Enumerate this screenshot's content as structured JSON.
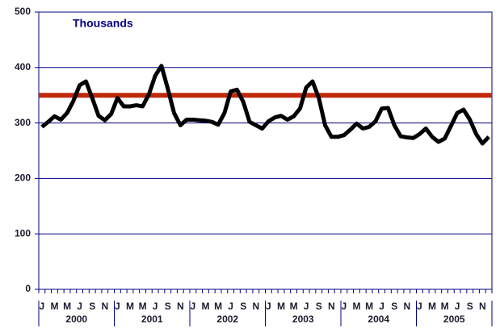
{
  "chart_data": {
    "type": "line",
    "title": "Thousands",
    "categories": [
      "J",
      null,
      "M",
      null,
      "M",
      null,
      "J",
      null,
      "S",
      null,
      "N",
      null,
      "J",
      null,
      "M",
      null,
      "M",
      null,
      "J",
      null,
      "S",
      null,
      "N",
      null,
      "J",
      null,
      "M",
      null,
      "M",
      null,
      "J",
      null,
      "S",
      null,
      "N",
      null,
      "J",
      null,
      "M",
      null,
      "M",
      null,
      "J",
      null,
      "S",
      null,
      "N",
      null,
      "J",
      null,
      "M",
      null,
      "M",
      null,
      "J",
      null,
      "S",
      null,
      "N",
      null,
      "J",
      null,
      "M",
      null,
      "M",
      null,
      "J",
      null,
      "S",
      null,
      "N",
      null
    ],
    "x_groups": [
      "2000",
      "2001",
      "2002",
      "2003",
      "2004",
      "2005"
    ],
    "series": [
      {
        "color": "#000000",
        "values": [
          293,
          302,
          312,
          306,
          318,
          340,
          368,
          375,
          345,
          313,
          305,
          316,
          345,
          330,
          330,
          332,
          330,
          352,
          385,
          403,
          362,
          318,
          296,
          306,
          306,
          305,
          304,
          302,
          297,
          318,
          357,
          360,
          338,
          302,
          296,
          290,
          303,
          310,
          313,
          306,
          312,
          326,
          364,
          375,
          345,
          296,
          275,
          275,
          278,
          288,
          299,
          290,
          293,
          303,
          326,
          327,
          296,
          276,
          274,
          273,
          280,
          290,
          275,
          266,
          272,
          295,
          318,
          324,
          306,
          280,
          263,
          275
        ]
      }
    ],
    "reference_line": {
      "value": 350,
      "color": "#c0280a"
    },
    "ylim": [
      0,
      500
    ],
    "yticks": [
      0,
      100,
      200,
      300,
      400,
      500
    ],
    "grid": true,
    "axis_color": "#000080"
  }
}
